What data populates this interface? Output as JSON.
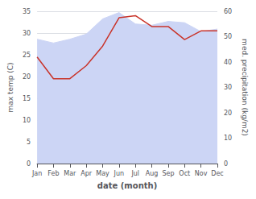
{
  "chart_data": {
    "type": "line",
    "xlabel": "date (month)",
    "ylabel": "max temp (C)",
    "y2label": "med. precipitation (kg/m2)",
    "categories": [
      "Jan",
      "Feb",
      "Mar",
      "Apr",
      "May",
      "Jun",
      "Jul",
      "Aug",
      "Sep",
      "Oct",
      "Nov",
      "Dec"
    ],
    "series": [
      {
        "type": "area",
        "axis": "y2",
        "color": "#ccd5f5",
        "values": [
          49.0,
          47.5,
          49.0,
          51.0,
          57.0,
          59.5,
          55.0,
          54.5,
          56.0,
          55.5,
          52.0,
          53.0
        ]
      },
      {
        "type": "line",
        "color": "#c9342a",
        "values": [
          24.5,
          19.5,
          19.5,
          22.5,
          27.0,
          33.5,
          34.0,
          31.5,
          31.5,
          28.5,
          30.5,
          30.5
        ]
      }
    ],
    "ylim": [
      0,
      35
    ],
    "yticks": [
      0,
      5,
      10,
      15,
      20,
      25,
      30,
      35
    ],
    "y2lim": [
      0,
      60
    ],
    "y2ticks": [
      0,
      10,
      20,
      30,
      40,
      50,
      60
    ],
    "grid": true
  }
}
